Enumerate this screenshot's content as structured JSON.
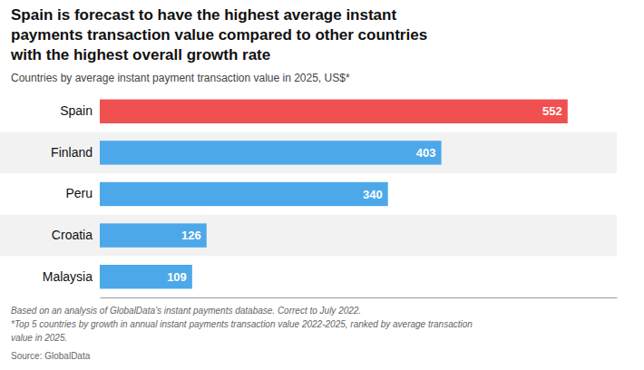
{
  "chart_data": {
    "type": "bar",
    "orientation": "horizontal",
    "title": [
      "Spain is forecast to have the highest average instant",
      "payments transaction value compared to other countries",
      "with the highest overall growth rate"
    ],
    "subtitle": "Countries by average instant payment transaction value in 2025, US$*",
    "categories": [
      "Spain",
      "Finland",
      "Peru",
      "Croatia",
      "Malaysia"
    ],
    "values": [
      552,
      403,
      340,
      126,
      109
    ],
    "colors": [
      "#f05050",
      "#4da8ea",
      "#4da8ea",
      "#4da8ea",
      "#4da8ea"
    ],
    "xlim": [
      0,
      610
    ],
    "data_labels": true,
    "grid": false,
    "tick_labels": "y",
    "annotations": [
      "Based on an analysis of GlobalData’s instant payments database. Correct to July 2022.",
      "*Top 5 countries by growth in annual instant payments transaction value 2022-2025, ranked by average transaction",
      "value in 2025.",
      "Source: GlobalData"
    ]
  }
}
